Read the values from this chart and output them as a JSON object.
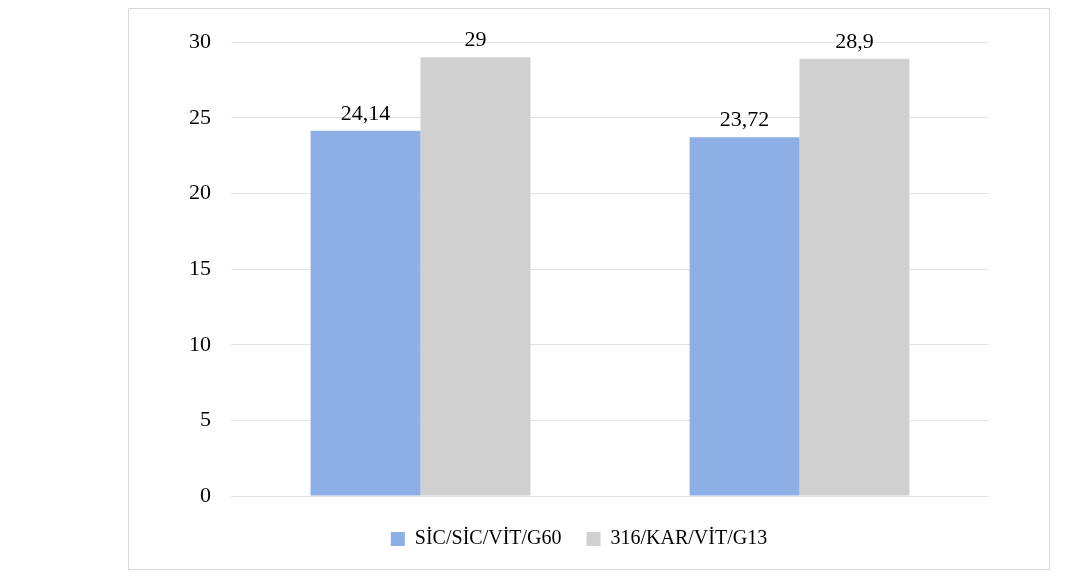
{
  "chart_data": {
    "type": "bar",
    "categories": [
      null,
      null
    ],
    "series": [
      {
        "name": "SİC/SİC/VİT/G60",
        "color": "#8eaee6",
        "values": [
          24.14,
          23.72
        ],
        "value_labels": [
          "24,14",
          "23,72"
        ]
      },
      {
        "name": "316/KAR/VİT/G13",
        "color": "#d0d0d0",
        "values": [
          29,
          28.9
        ],
        "value_labels": [
          "29",
          "28,9"
        ]
      }
    ],
    "ylim": [
      0,
      30
    ],
    "yticks": [
      0,
      5,
      10,
      15,
      20,
      25,
      30
    ],
    "grid": "y",
    "legend": "bottom"
  }
}
